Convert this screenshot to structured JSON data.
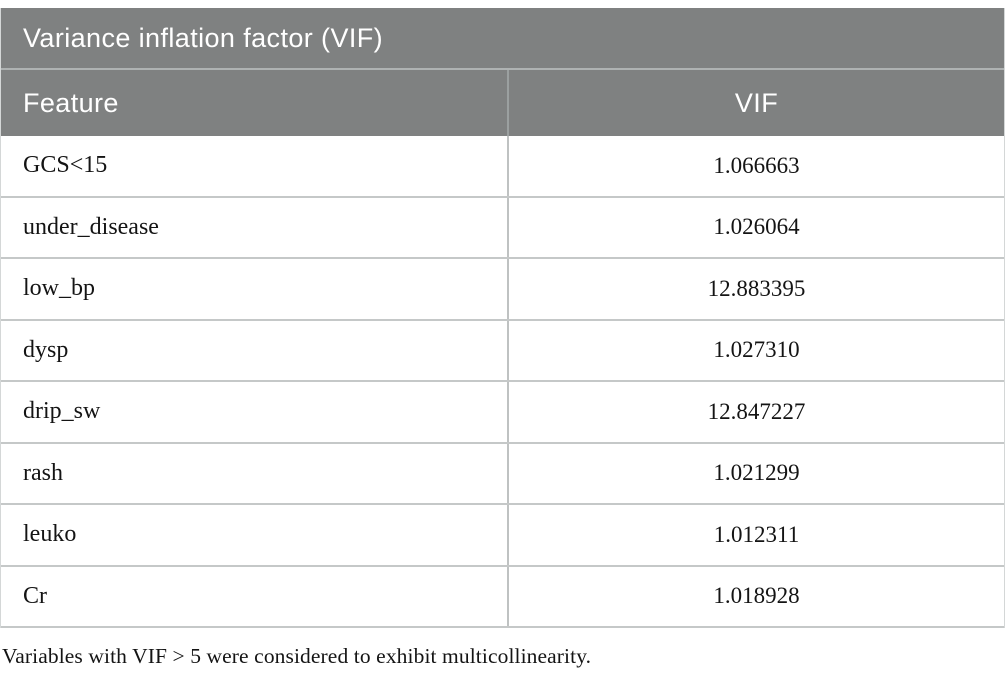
{
  "table": {
    "title": "Variance inflation factor (VIF)",
    "columns": {
      "feature": "Feature",
      "vif": "VIF"
    },
    "rows": [
      {
        "feature": "GCS<15",
        "vif": "1.066663"
      },
      {
        "feature": "under_disease",
        "vif": "1.026064"
      },
      {
        "feature": "low_bp",
        "vif": "12.883395"
      },
      {
        "feature": "dysp",
        "vif": "1.027310"
      },
      {
        "feature": "drip_sw",
        "vif": "12.847227"
      },
      {
        "feature": "rash",
        "vif": "1.021299"
      },
      {
        "feature": "leuko",
        "vif": "1.012311"
      },
      {
        "feature": "Cr",
        "vif": "1.018928"
      }
    ],
    "footnote": "Variables with VIF > 5 were considered to exhibit multicollinearity.",
    "colors": {
      "header_bg": "#7f8181",
      "header_text": "#ffffff",
      "row_divider": "#c5c8c8",
      "body_text": "#141414"
    }
  }
}
